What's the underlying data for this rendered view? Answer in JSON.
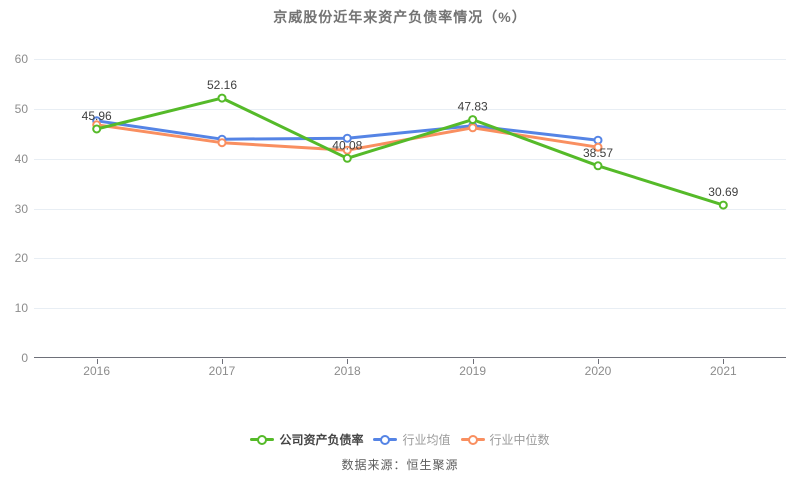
{
  "title": "京威股份近年来资产负债率情况（%）",
  "source_note": "数据来源：恒生聚源",
  "colors": {
    "company": "#55ba29",
    "industry_avg": "#5584e5",
    "industry_median": "#f98f60",
    "grid_line": "#e8eef4",
    "axis_line": "#6e7079",
    "axis_text": "#8c8c8c",
    "data_label": "#3f3f3f",
    "title_text": "#737373",
    "legend_active_text": "#464646",
    "legend_muted_text": "#9a9a9a",
    "source_text": "#5c5c5c"
  },
  "chart_data": {
    "type": "line",
    "title": "京威股份近年来资产负债率情况（%）",
    "categories": [
      "2016",
      "2017",
      "2018",
      "2019",
      "2020",
      "2021"
    ],
    "series": [
      {
        "name": "公司资产负债率",
        "color_key": "company",
        "show_labels": true,
        "values": [
          45.96,
          52.16,
          40.08,
          47.83,
          38.57,
          30.69
        ]
      },
      {
        "name": "行业均值",
        "color_key": "industry_avg",
        "show_labels": false,
        "values": [
          47.6,
          43.9,
          44.1,
          46.6,
          43.7,
          null
        ]
      },
      {
        "name": "行业中位数",
        "color_key": "industry_median",
        "show_labels": false,
        "values": [
          46.8,
          43.2,
          41.7,
          46.2,
          42.3,
          null
        ]
      }
    ],
    "xlabel": "",
    "ylabel": "",
    "ylim": [
      0,
      60
    ],
    "ytick_step": 10,
    "grid": true,
    "legend_position": "bottom",
    "labels_shown_for": "公司资产负债率"
  }
}
